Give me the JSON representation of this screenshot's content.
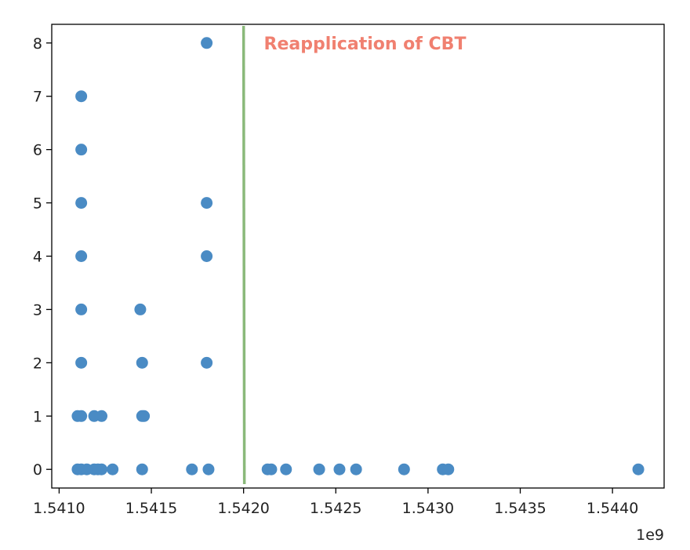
{
  "chart_data": {
    "type": "scatter",
    "title": "",
    "xlabel": "",
    "ylabel": "",
    "x_offset_label": "1e9",
    "xlim": [
      1.54096,
      1.54428
    ],
    "ylim": [
      -0.35,
      8.35
    ],
    "x_ticks": [
      1.541,
      1.5415,
      1.542,
      1.5425,
      1.543,
      1.5435,
      1.544
    ],
    "x_tick_labels": [
      "1.5410",
      "1.5415",
      "1.5420",
      "1.5425",
      "1.5430",
      "1.5435",
      "1.5440"
    ],
    "y_ticks": [
      0,
      1,
      2,
      3,
      4,
      5,
      6,
      7,
      8
    ],
    "y_tick_labels": [
      "0",
      "1",
      "2",
      "3",
      "4",
      "5",
      "6",
      "7",
      "8"
    ],
    "grid": false,
    "colors": {
      "points": "#4a8bc4",
      "vline": "#8ab97a",
      "annotation": "#f08070"
    },
    "series": [
      {
        "x": [
          1.54112,
          1.54112,
          1.54112,
          1.54112,
          1.54112,
          1.54112,
          1.54112,
          1.54112,
          1.5411,
          1.54115,
          1.54119,
          1.54121,
          1.54123,
          1.54129,
          1.5411,
          1.54119,
          1.54123,
          1.54145,
          1.54145,
          1.54145,
          1.54144,
          1.54146,
          1.54172,
          1.54181,
          1.5418,
          1.5418,
          1.5418,
          1.5418,
          1.54213,
          1.54215,
          1.54223,
          1.54241,
          1.54252,
          1.54261,
          1.54287,
          1.54308,
          1.54311,
          1.54414
        ],
        "y": [
          0,
          1,
          2,
          3,
          4,
          5,
          6,
          7,
          0,
          0,
          0,
          0,
          0,
          0,
          1,
          1,
          1,
          0,
          1,
          2,
          3,
          1,
          0,
          0,
          2,
          4,
          5,
          8,
          0,
          0,
          0,
          0,
          0,
          0,
          0,
          0,
          0,
          0
        ]
      }
    ],
    "vline": {
      "x": 1.542
    },
    "annotation": {
      "text": "Reapplication of CBT",
      "x": 1.54211,
      "y": 8.0
    }
  }
}
